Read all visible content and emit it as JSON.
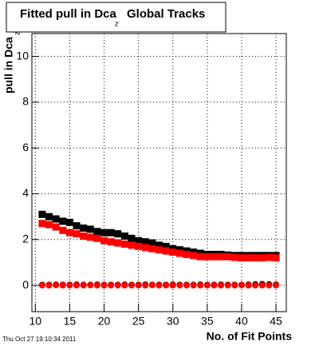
{
  "chart_data": {
    "type": "scatter",
    "title": "Fitted pull in Dca",
    "title_subscript": "z",
    "title_suffix": "Global Tracks",
    "y_label": "pull in Dca",
    "y_label_subscript": "z",
    "x_label": "No. of Fit Points",
    "footer": "Thu Oct 27 19:10:34 2011",
    "x": [
      11,
      12,
      13,
      14,
      15,
      16,
      17,
      18,
      19,
      20,
      21,
      22,
      23,
      24,
      25,
      26,
      27,
      28,
      29,
      30,
      31,
      32,
      33,
      34,
      35,
      36,
      37,
      38,
      39,
      40,
      41,
      42,
      43,
      44,
      45
    ],
    "series": [
      {
        "color": "#000000",
        "marker": "square",
        "values": [
          3.1,
          3.0,
          2.9,
          2.8,
          2.75,
          2.6,
          2.5,
          2.45,
          2.35,
          2.3,
          2.3,
          2.25,
          2.15,
          2.05,
          1.95,
          1.9,
          1.85,
          1.75,
          1.7,
          1.6,
          1.55,
          1.5,
          1.45,
          1.4,
          1.35,
          1.35,
          1.35,
          1.32,
          1.3,
          1.3,
          1.3,
          1.3,
          1.3,
          1.3,
          1.3
        ]
      },
      {
        "color": "#ff0000",
        "marker": "square",
        "values": [
          2.7,
          2.65,
          2.55,
          2.4,
          2.3,
          2.25,
          2.15,
          2.1,
          2.05,
          1.95,
          1.9,
          1.85,
          1.8,
          1.75,
          1.7,
          1.65,
          1.6,
          1.55,
          1.5,
          1.45,
          1.4,
          1.35,
          1.3,
          1.25,
          1.25,
          1.25,
          1.25,
          1.25,
          1.22,
          1.2,
          1.2,
          1.2,
          1.2,
          1.22,
          1.2
        ]
      },
      {
        "color": "#000000",
        "marker": "circle",
        "values": [
          0.02,
          0.02,
          0.03,
          0.02,
          0.02,
          0.03,
          0.02,
          0.02,
          0.03,
          0.02,
          0.02,
          0.02,
          0.03,
          0.02,
          0.02,
          0.03,
          0.02,
          0.02,
          0.02,
          0.03,
          0.02,
          0.02,
          0.02,
          0.03,
          0.02,
          0.02,
          0.03,
          0.02,
          0.02,
          0.02,
          0.03,
          0.04,
          0.05,
          0.04,
          0.03
        ]
      },
      {
        "color": "#ff0000",
        "marker": "circle",
        "values": [
          0.0,
          0.0,
          0.01,
          0.0,
          0.0,
          0.0,
          0.0,
          0.01,
          0.0,
          0.0,
          0.0,
          0.0,
          0.0,
          0.0,
          0.0,
          0.0,
          0.01,
          0.0,
          0.0,
          0.0,
          0.0,
          0.0,
          0.0,
          0.0,
          0.0,
          0.0,
          0.0,
          0.0,
          0.0,
          0.01,
          0.0,
          0.0,
          0.0,
          0.0,
          0.0
        ]
      }
    ],
    "xlim": [
      9.5,
      46.5
    ],
    "ylim": [
      -1.15,
      11
    ],
    "xticks": [
      10,
      15,
      20,
      25,
      30,
      35,
      40,
      45
    ],
    "yticks": [
      0,
      2,
      4,
      6,
      8,
      10
    ],
    "grid": true
  }
}
